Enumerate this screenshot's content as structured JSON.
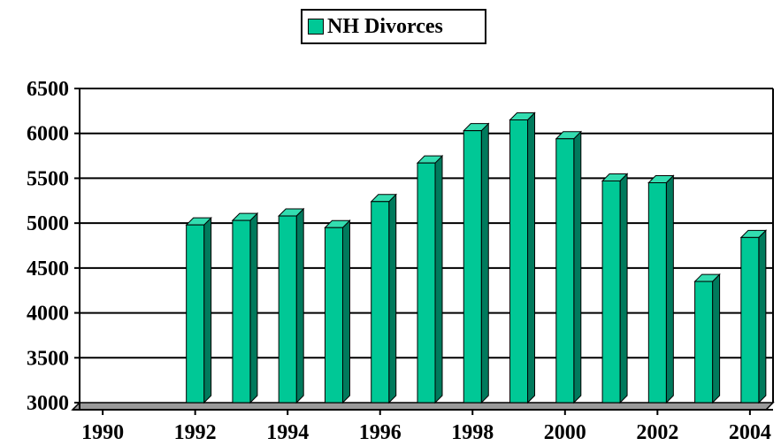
{
  "colors": {
    "bar_front": "#00C896",
    "bar_side": "#007A5C",
    "bar_top": "#33DDB0",
    "outline": "#000000"
  },
  "chart_data": {
    "type": "bar",
    "title": "",
    "xlabel": "",
    "ylabel": "",
    "ylim": [
      3000,
      6500
    ],
    "yticks": [
      "3000",
      "3500",
      "4000",
      "4500",
      "5000",
      "5500",
      "6000",
      "6500"
    ],
    "xtick_labels": [
      "1990",
      "1992",
      "1994",
      "1996",
      "1998",
      "2000",
      "2002",
      "2004"
    ],
    "grid": true,
    "legend_position": "top-center",
    "categories": [
      "1990",
      "1991",
      "1992",
      "1993",
      "1994",
      "1995",
      "1996",
      "1997",
      "1998",
      "1999",
      "2000",
      "2001",
      "2002",
      "2003",
      "2004"
    ],
    "series": [
      {
        "name": "NH Divorces",
        "values": [
          null,
          null,
          4980,
          5030,
          5080,
          4950,
          5240,
          5670,
          6030,
          6150,
          5940,
          5470,
          5450,
          4350,
          4840
        ]
      }
    ]
  }
}
